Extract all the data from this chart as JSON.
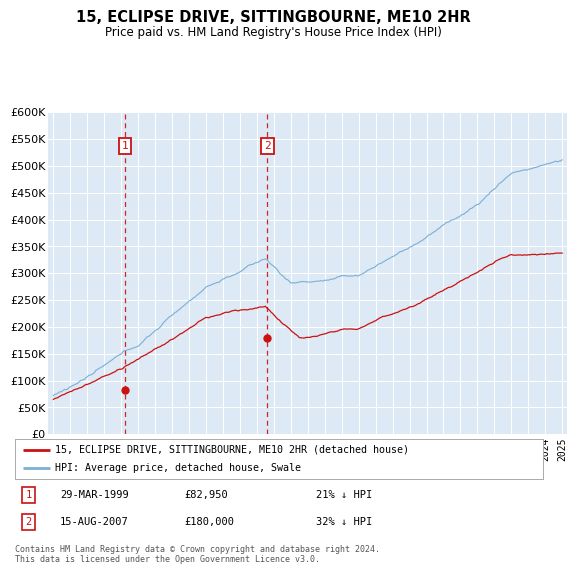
{
  "title": "15, ECLIPSE DRIVE, SITTINGBOURNE, ME10 2HR",
  "subtitle": "Price paid vs. HM Land Registry's House Price Index (HPI)",
  "ylim": [
    0,
    600000
  ],
  "yticks": [
    0,
    50000,
    100000,
    150000,
    200000,
    250000,
    300000,
    350000,
    400000,
    450000,
    500000,
    550000,
    600000
  ],
  "ytick_labels": [
    "£0",
    "£50K",
    "£100K",
    "£150K",
    "£200K",
    "£250K",
    "£300K",
    "£350K",
    "£400K",
    "£450K",
    "£500K",
    "£550K",
    "£600K"
  ],
  "hpi_color": "#7bafd4",
  "price_color": "#cc1111",
  "annotation_box_color": "#cc1111",
  "background_color": "#ddeaf5",
  "grid_color": "#ffffff",
  "transaction1": {
    "date": "29-MAR-1999",
    "price": 82950,
    "label": "1",
    "pct": "21% ↓ HPI",
    "year": 1999.24
  },
  "transaction2": {
    "date": "15-AUG-2007",
    "price": 180000,
    "label": "2",
    "pct": "32% ↓ HPI",
    "year": 2007.62
  },
  "legend_line1": "15, ECLIPSE DRIVE, SITTINGBOURNE, ME10 2HR (detached house)",
  "legend_line2": "HPI: Average price, detached house, Swale",
  "footnote": "Contains HM Land Registry data © Crown copyright and database right 2024.\nThis data is licensed under the Open Government Licence v3.0.",
  "x_start_year": 1995,
  "x_end_year": 2025
}
